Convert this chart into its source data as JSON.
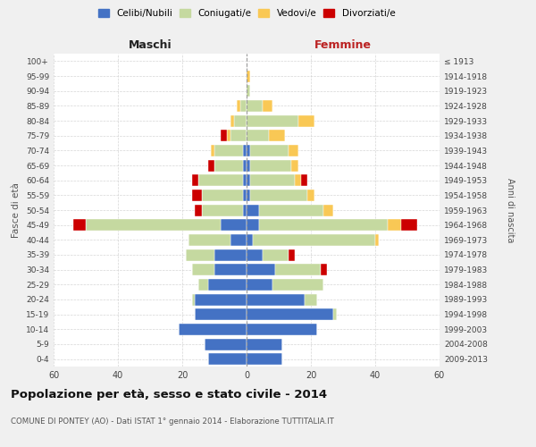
{
  "age_groups": [
    "0-4",
    "5-9",
    "10-14",
    "15-19",
    "20-24",
    "25-29",
    "30-34",
    "35-39",
    "40-44",
    "45-49",
    "50-54",
    "55-59",
    "60-64",
    "65-69",
    "70-74",
    "75-79",
    "80-84",
    "85-89",
    "90-94",
    "95-99",
    "100+"
  ],
  "year_labels": [
    "2009-2013",
    "2004-2008",
    "1999-2003",
    "1994-1998",
    "1989-1993",
    "1984-1988",
    "1979-1983",
    "1974-1978",
    "1969-1973",
    "1964-1968",
    "1959-1963",
    "1954-1958",
    "1949-1953",
    "1944-1948",
    "1939-1943",
    "1934-1938",
    "1929-1933",
    "1924-1928",
    "1919-1923",
    "1914-1918",
    "≤ 1913"
  ],
  "male_celibi": [
    12,
    13,
    21,
    16,
    16,
    12,
    10,
    10,
    5,
    8,
    1,
    1,
    1,
    1,
    1,
    0,
    0,
    0,
    0,
    0,
    0
  ],
  "male_coniugati": [
    0,
    0,
    0,
    0,
    1,
    3,
    7,
    9,
    13,
    42,
    13,
    13,
    14,
    9,
    9,
    5,
    4,
    2,
    0,
    0,
    0
  ],
  "male_vedovi": [
    0,
    0,
    0,
    0,
    0,
    0,
    0,
    0,
    0,
    0,
    0,
    0,
    0,
    0,
    1,
    1,
    1,
    1,
    0,
    0,
    0
  ],
  "male_divorziati": [
    0,
    0,
    0,
    0,
    0,
    0,
    0,
    0,
    0,
    4,
    2,
    3,
    2,
    2,
    0,
    2,
    0,
    0,
    0,
    0,
    0
  ],
  "female_celibi": [
    11,
    11,
    22,
    27,
    18,
    8,
    9,
    5,
    2,
    4,
    4,
    1,
    1,
    1,
    1,
    0,
    0,
    0,
    0,
    0,
    0
  ],
  "female_coniugati": [
    0,
    0,
    0,
    1,
    4,
    16,
    14,
    8,
    38,
    40,
    20,
    18,
    14,
    13,
    12,
    7,
    16,
    5,
    1,
    0,
    0
  ],
  "female_vedovi": [
    0,
    0,
    0,
    0,
    0,
    0,
    0,
    0,
    1,
    4,
    3,
    2,
    2,
    2,
    3,
    5,
    5,
    3,
    0,
    1,
    0
  ],
  "female_divorziati": [
    0,
    0,
    0,
    0,
    0,
    0,
    2,
    2,
    0,
    5,
    0,
    0,
    2,
    0,
    0,
    0,
    0,
    0,
    0,
    0,
    0
  ],
  "colors": {
    "celibi": "#4472c4",
    "coniugati": "#c5d9a0",
    "vedovi": "#f9c855",
    "divorziati": "#cc0000"
  },
  "title": "Popolazione per età, sesso e stato civile - 2014",
  "subtitle": "COMUNE DI PONTEY (AO) - Dati ISTAT 1° gennaio 2014 - Elaborazione TUTTITALIA.IT",
  "xlabel_left": "Maschi",
  "xlabel_right": "Femmine",
  "ylabel": "Fasce di età",
  "ylabel_right": "Anni di nascita",
  "xlim": 60,
  "bg_color": "#f0f0f0",
  "plot_bg_color": "#ffffff",
  "grid_color": "#cccccc"
}
